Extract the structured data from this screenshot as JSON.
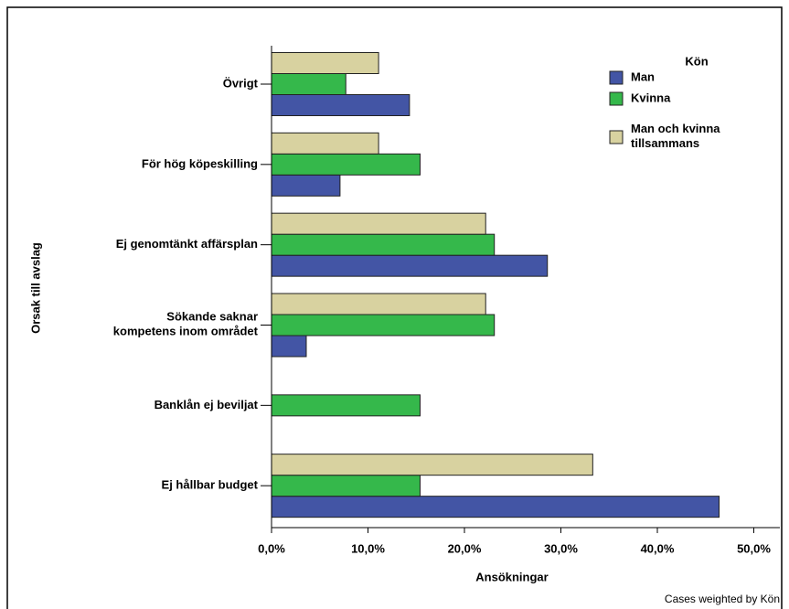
{
  "chart_data": {
    "type": "hbar",
    "xlabel": "Ansökningar",
    "ylabel": "Orsak till avslag",
    "footnote": "Cases weighted by Kön",
    "legend_title": "Kön",
    "legend": "top-right",
    "categories": [
      "Övrigt",
      "För hög köpeskilling",
      "Ej genomtänkt affärsplan",
      "Sökande saknar\nkompetens inom området",
      "Banklån ej beviljat",
      "Ej hållbar budget"
    ],
    "series": [
      {
        "name": "Man",
        "color": "#4355a5",
        "values": [
          14.3,
          7.1,
          28.6,
          3.6,
          0,
          46.4
        ]
      },
      {
        "name": "Kvinna",
        "color": "#35b84b",
        "values": [
          7.7,
          15.4,
          23.1,
          23.1,
          15.4,
          15.4
        ]
      },
      {
        "name": "Man och kvinna\ntillsammans",
        "color": "#d8d2a0",
        "values": [
          11.1,
          11.1,
          22.2,
          22.2,
          0,
          33.3
        ]
      }
    ],
    "xlim": [
      0,
      52.7
    ],
    "xticks": [
      {
        "value": 0,
        "label": "0,0%"
      },
      {
        "value": 10,
        "label": "10,0%"
      },
      {
        "value": 20,
        "label": "20,0%"
      },
      {
        "value": 30,
        "label": "30,0%"
      },
      {
        "value": 40,
        "label": "40,0%"
      },
      {
        "value": 50,
        "label": "50,0%"
      }
    ]
  }
}
